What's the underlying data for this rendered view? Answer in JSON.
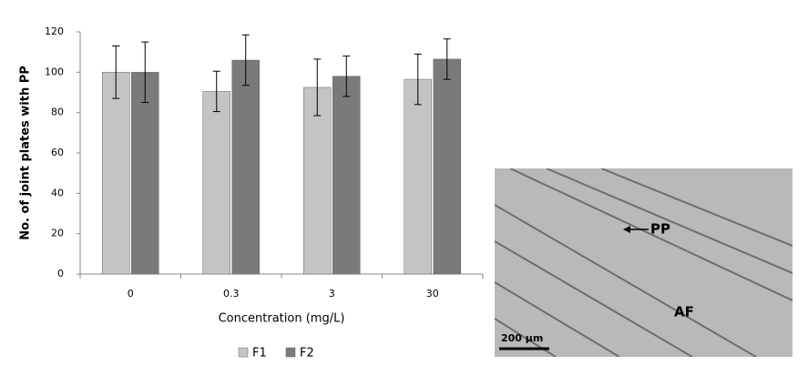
{
  "chart_data": {
    "type": "bar",
    "y_label": "No. of joint plates with PP",
    "x_label": "Concentration (mg/L)",
    "categories": [
      "0",
      "0.3",
      "3",
      "30"
    ],
    "series": [
      {
        "name": "F1",
        "color": "#c4c4c4",
        "values": [
          100,
          90.5,
          92.5,
          96.5
        ],
        "errors": [
          13,
          10,
          14,
          12.5
        ]
      },
      {
        "name": "F2",
        "color": "#7a7a7a",
        "values": [
          100,
          106,
          98,
          106.5
        ],
        "errors": [
          15,
          12.5,
          10,
          10
        ]
      }
    ],
    "ylim": [
      0,
      120
    ],
    "yticks": [
      0,
      20,
      40,
      60,
      80,
      100,
      120
    ],
    "legend": "bottom"
  },
  "micrograph": {
    "labels": [
      "PP",
      "AF"
    ],
    "scale_bar": "200 µm"
  }
}
